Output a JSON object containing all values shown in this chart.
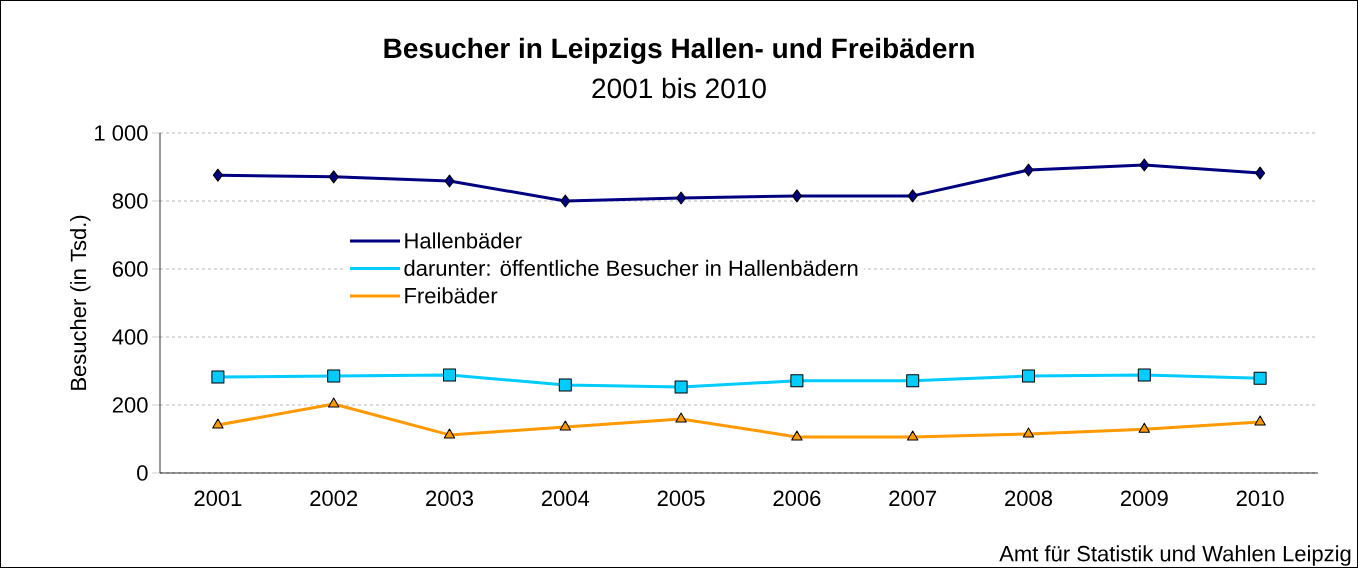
{
  "chart_data": {
    "type": "line",
    "title": "Besucher in Leipzigs Hallen- und Freibädern",
    "subtitle": "2001 bis 2010",
    "ylabel": "Besucher (in Tsd.)",
    "categories": [
      "2001",
      "2002",
      "2003",
      "2004",
      "2005",
      "2006",
      "2007",
      "2008",
      "2009",
      "2010"
    ],
    "series": [
      {
        "name": "Hallenbäder",
        "color": "#000080",
        "marker": "diamond",
        "values": [
          876,
          871,
          859,
          800,
          809,
          815,
          815,
          891,
          906,
          882
        ]
      },
      {
        "name": "darunter: öffentliche Besucher in Hallenbädern",
        "color": "#00ccff",
        "marker": "square",
        "values": [
          282,
          285,
          288,
          259,
          253,
          271,
          271,
          285,
          288,
          279
        ]
      },
      {
        "name": "Freibäder",
        "color": "#ff9900",
        "marker": "triangle",
        "values": [
          141,
          203,
          112,
          135,
          159,
          106,
          106,
          115,
          129,
          150
        ]
      }
    ],
    "ylim": [
      0,
      1000
    ],
    "yticks": [
      0,
      200,
      400,
      600,
      800,
      {
        "value": 1000,
        "label": "1 000"
      }
    ],
    "grid": "y",
    "legend": "left",
    "line_style": "solid",
    "annotations": [
      "Amt für Statistik und Wahlen Leipzig"
    ]
  }
}
